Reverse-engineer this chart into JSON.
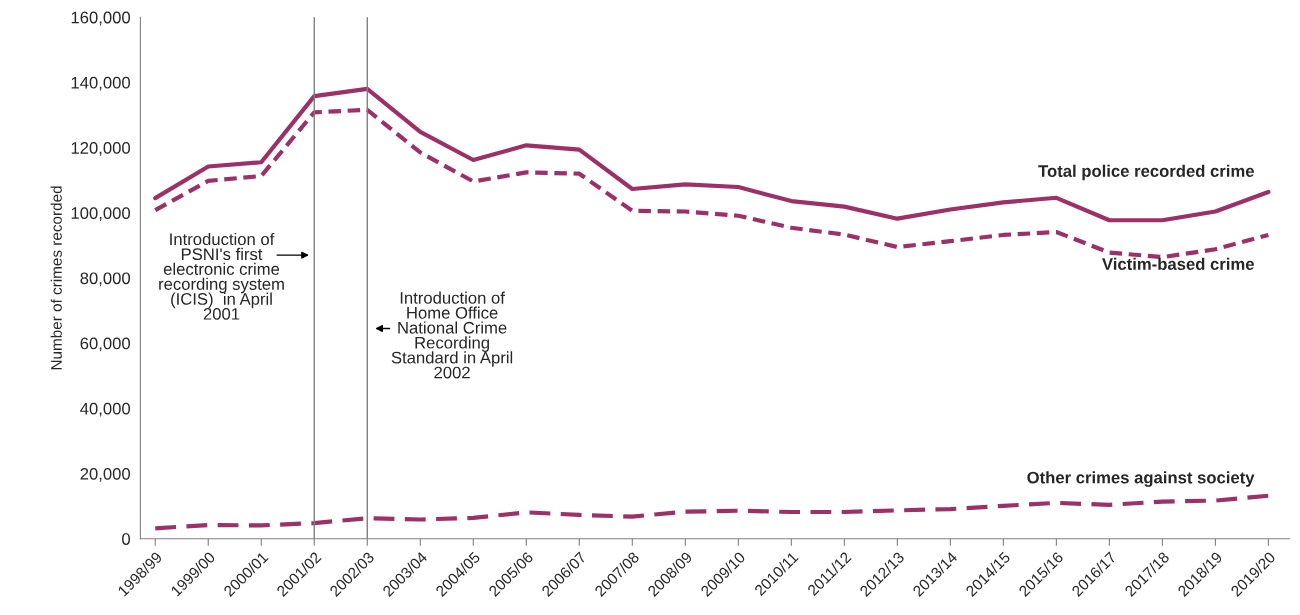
{
  "chart_data": {
    "type": "line",
    "ylabel": "Number of crimes recorded",
    "categories": [
      "1998/99",
      "1999/00",
      "2000/01",
      "2001/02",
      "2002/03",
      "2003/04",
      "2004/05",
      "2005/06",
      "2006/07",
      "2007/08",
      "2008/09",
      "2009/10",
      "2010/11",
      "2011/12",
      "2012/13",
      "2013/14",
      "2014/15",
      "2015/16",
      "2016/17",
      "2017/18",
      "2018/19",
      "2019/20"
    ],
    "series": [
      {
        "name": "Total police recorded crime",
        "color": "#9b3166",
        "line_style": "solid",
        "values": [
          104500,
          114200,
          115500,
          135800,
          138000,
          124800,
          116200,
          120700,
          119400,
          107300,
          108700,
          107900,
          103600,
          101900,
          98200,
          101000,
          103200,
          104600,
          97700,
          97700,
          100400,
          106400
        ]
      },
      {
        "name": "Victim-based crime",
        "color": "#9b3166",
        "line_style": "dashed",
        "values": [
          100800,
          109800,
          111300,
          130800,
          131600,
          118500,
          109600,
          112400,
          112000,
          100600,
          100400,
          99100,
          95400,
          93300,
          89500,
          91300,
          93200,
          94100,
          87800,
          86400,
          88800,
          93200
        ]
      },
      {
        "name": "Other crimes against society",
        "color": "#9b3166",
        "line_style": "dashed",
        "values": [
          3200,
          4200,
          4100,
          4800,
          6300,
          5900,
          6400,
          8100,
          7300,
          6800,
          8300,
          8600,
          8200,
          8200,
          8700,
          9100,
          10100,
          11000,
          10400,
          11400,
          11700,
          13200
        ]
      }
    ],
    "ylim": [
      0,
      160000
    ],
    "yticks": [
      0,
      {
        "value": 20000,
        "label": "20,000"
      },
      {
        "value": 40000,
        "label": "40,000"
      },
      {
        "value": 60000,
        "label": "60,000"
      },
      {
        "value": 80000,
        "label": "80,000"
      },
      {
        "value": 100000,
        "label": "100,000"
      },
      {
        "value": 120000,
        "label": "120,000"
      },
      {
        "value": 140000,
        "label": "140,000"
      },
      {
        "value": 160000,
        "label": "160,000"
      }
    ],
    "ref_lines": [
      {
        "axis": "x",
        "value": "2001/02",
        "color": "#808080",
        "label": "Introduction of\nPSNI's first\nelectronic crime\nrecording system\n(ICIS)  in April\n2001"
      },
      {
        "axis": "x",
        "value": "2002/03",
        "color": "#808080",
        "label": "Introduction of\nHome Office\nNational Crime\nRecording\nStandard in April\n2002"
      }
    ],
    "grid": false,
    "legend": false
  }
}
